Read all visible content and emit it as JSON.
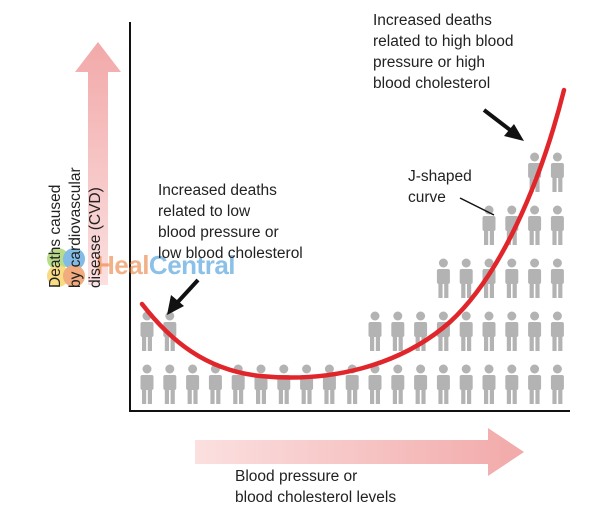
{
  "axes": {
    "y_title": "Deaths caused\nby cardiovascular\ndisease (CVD)",
    "x_title": "Blood pressure or\nblood cholesterol levels"
  },
  "annotations": {
    "high": "Increased deaths\nrelated to high blood\npressure or high\nblood cholesterol",
    "low": "Increased deaths\nrelated to low\nblood pressure or\nlow blood cholesterol",
    "curve": "J-shaped\ncurve"
  },
  "curve": {
    "shape": "J-shaped",
    "column_heights": [
      2,
      2,
      1,
      1,
      1,
      1,
      1,
      1,
      1,
      1,
      2,
      2,
      2,
      3,
      3,
      4,
      4,
      5,
      5
    ]
  },
  "watermark": {
    "part1": "Heal",
    "part2": "Central"
  },
  "colors": {
    "curve": "#e0262b",
    "arrow_fill": "#f3b8b8",
    "figure": "#b3b3b3",
    "axis": "#111111"
  }
}
